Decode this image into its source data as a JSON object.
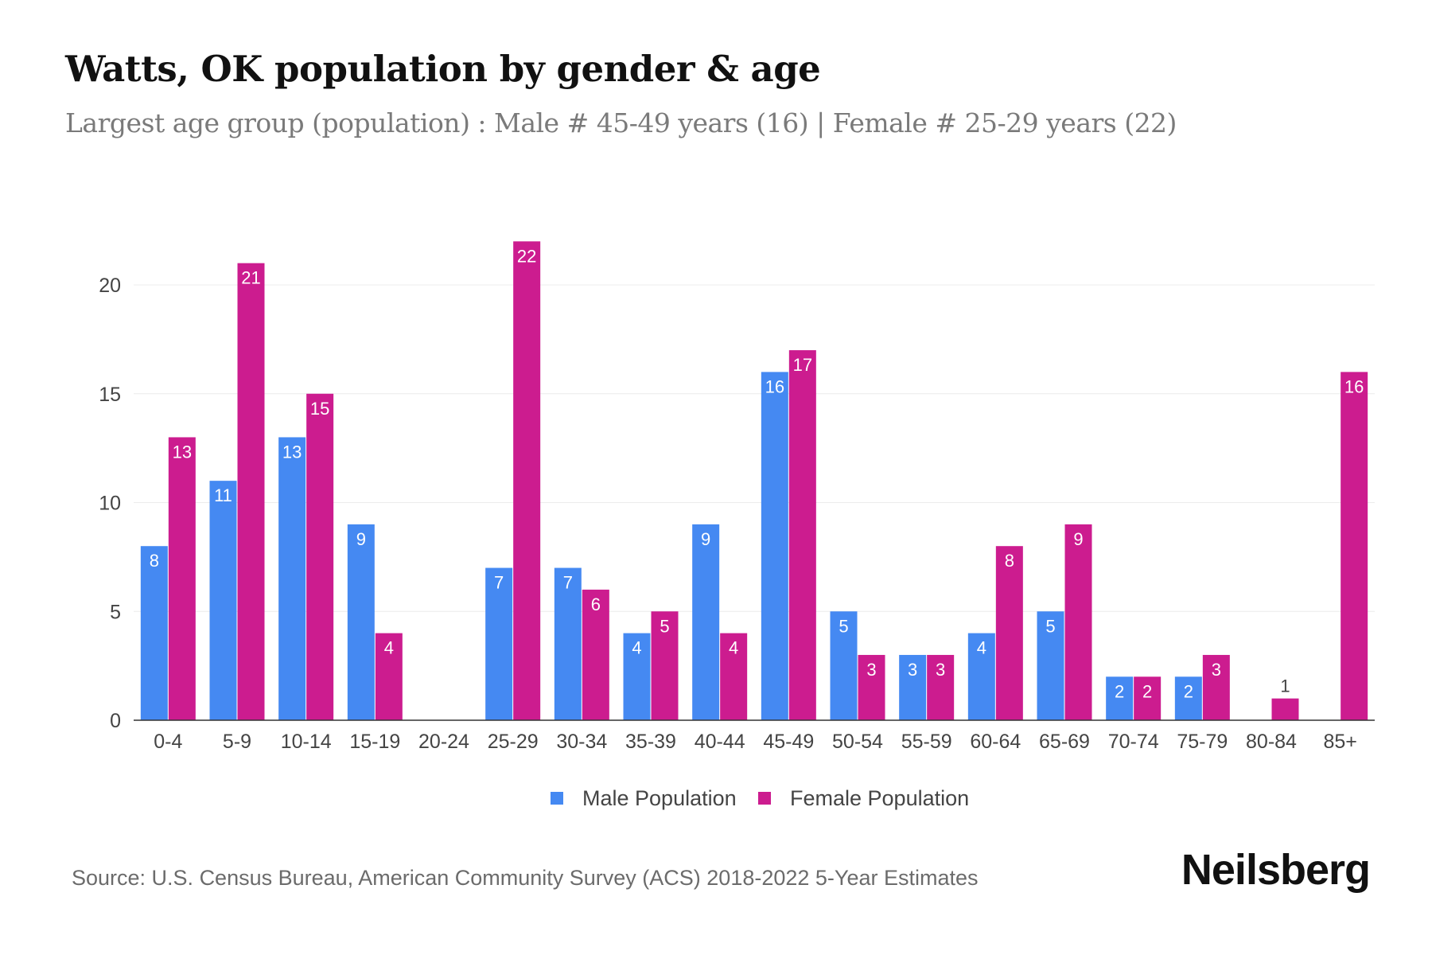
{
  "title": "Watts, OK population by gender & age",
  "subtitle": "Largest age group (population) : Male # 45-49 years (16) | Female # 25-29 years (22)",
  "source": "Source: U.S. Census Bureau, American Community Survey (ACS) 2018-2022 5-Year Estimates",
  "brand": "Neilsberg",
  "colors": {
    "male": "#4589f2",
    "female": "#cc1c8f"
  },
  "chart_data": {
    "type": "bar",
    "title": "Watts, OK population by gender & age",
    "xlabel": "",
    "ylabel": "",
    "ylim": [
      0,
      22
    ],
    "yticks": [
      0,
      5,
      10,
      15,
      20
    ],
    "grid": true,
    "legend": "bottom",
    "categories": [
      "0-4",
      "5-9",
      "10-14",
      "15-19",
      "20-24",
      "25-29",
      "30-34",
      "35-39",
      "40-44",
      "45-49",
      "50-54",
      "55-59",
      "60-64",
      "65-69",
      "70-74",
      "75-79",
      "80-84",
      "85+"
    ],
    "series": [
      {
        "name": "Male Population",
        "values": [
          8,
          11,
          13,
          9,
          0,
          7,
          7,
          4,
          9,
          16,
          5,
          3,
          4,
          5,
          2,
          2,
          0,
          0
        ]
      },
      {
        "name": "Female Population",
        "values": [
          13,
          21,
          15,
          4,
          0,
          22,
          6,
          5,
          4,
          17,
          3,
          3,
          8,
          9,
          2,
          3,
          1,
          16
        ]
      }
    ]
  }
}
